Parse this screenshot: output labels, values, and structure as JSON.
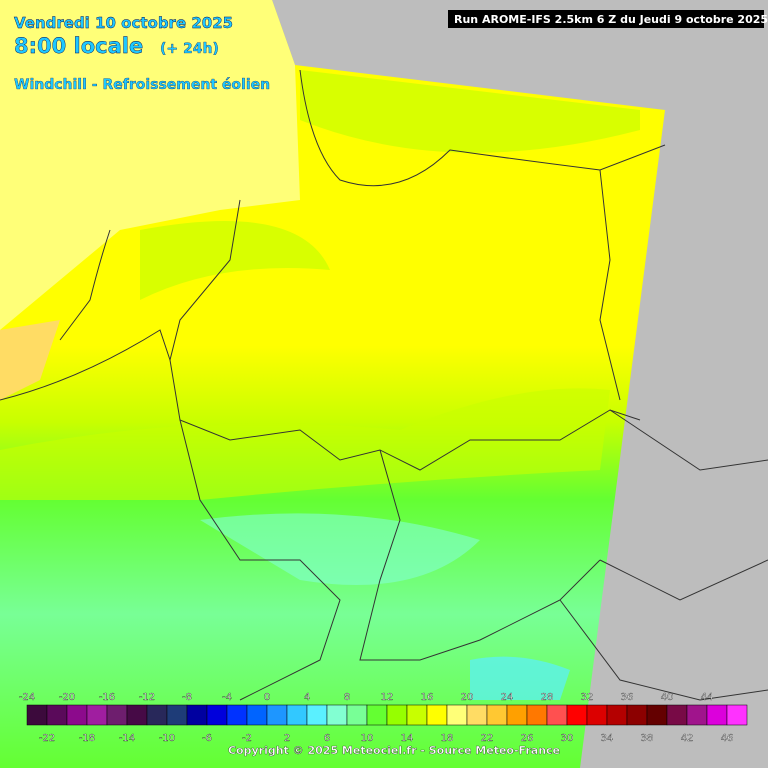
{
  "header": {
    "date": "Vendredi 10 octobre 2025",
    "time": "8:00 locale",
    "lead": "(+ 24h)",
    "parameter": "Windchill - Refroissement éolien",
    "run": "Run AROME-IFS 2.5km 6 Z du Jeudi 9 octobre 2025"
  },
  "legend": {
    "values": [
      -24,
      -22,
      -20,
      -18,
      -16,
      -14,
      -12,
      -10,
      -8,
      -6,
      -4,
      -2,
      0,
      2,
      4,
      6,
      8,
      10,
      12,
      14,
      16,
      18,
      20,
      22,
      24,
      26,
      28,
      30,
      32,
      34,
      36,
      38,
      40,
      42,
      44,
      46
    ],
    "colors": [
      "#3c0a3c",
      "#5a0a5a",
      "#8c0a8c",
      "#a01ea0",
      "#6e1e6e",
      "#460a46",
      "#28285a",
      "#1e3c78",
      "#0000a0",
      "#0000dc",
      "#0032ff",
      "#0064ff",
      "#1e96ff",
      "#32c8ff",
      "#5af0ff",
      "#82ffd2",
      "#78ff96",
      "#64ff32",
      "#96ff00",
      "#c8ff00",
      "#ffff00",
      "#ffff78",
      "#ffdc64",
      "#ffc832",
      "#ffa000",
      "#ff7800",
      "#ff5050",
      "#ff0000",
      "#dc0000",
      "#b40000",
      "#8c0000",
      "#640000",
      "#780a46",
      "#a0148c",
      "#dc00dc",
      "#ff32ff"
    ]
  },
  "footer": {
    "copyright": "Copyright © 2025 Meteociel.fr - Source Meteo-France"
  }
}
